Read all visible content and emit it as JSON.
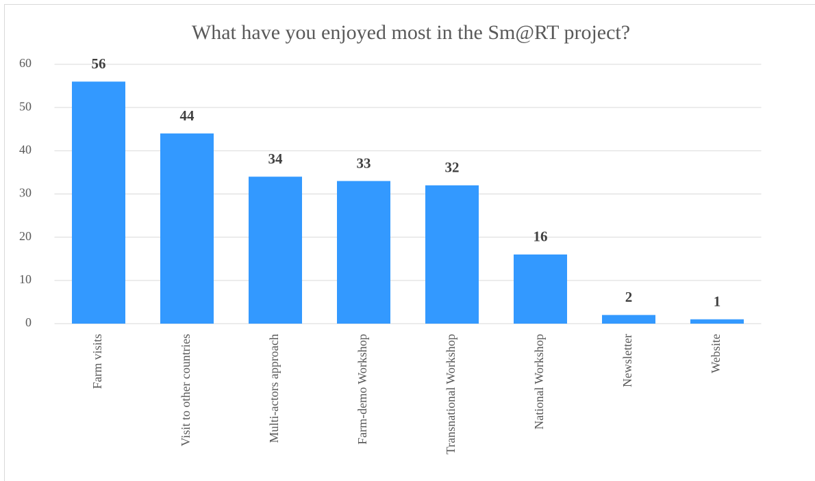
{
  "chart_data": {
    "type": "bar",
    "title": "What have you enjoyed most in the Sm@RT project?",
    "categories": [
      "Farm visits",
      "Visit to other countries",
      "Multi-actors approach",
      "Farm-demo Workshop",
      "Transnational Workshop",
      "National Workshop",
      "Newsletter",
      "Website"
    ],
    "values": [
      56,
      44,
      34,
      33,
      32,
      16,
      2,
      1
    ],
    "color": "#3399ff",
    "ylim": [
      0,
      60
    ],
    "yticks": [
      0,
      10,
      20,
      30,
      40,
      50,
      60
    ],
    "grid": true
  }
}
